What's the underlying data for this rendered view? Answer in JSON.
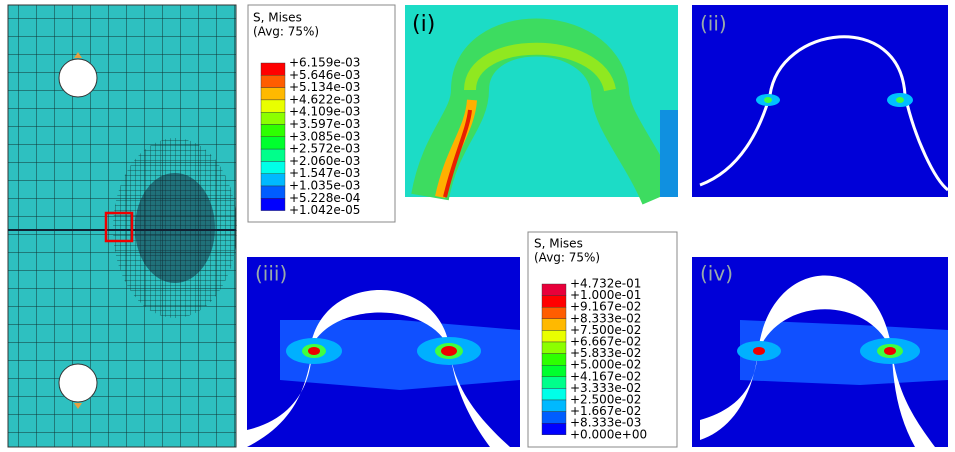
{
  "legends": [
    {
      "title": "S, Mises",
      "subtitle": "(Avg: 75%)",
      "entries": [
        "+6.159e-03",
        "+5.646e-03",
        "+5.134e-03",
        "+4.622e-03",
        "+4.109e-03",
        "+3.597e-03",
        "+3.085e-03",
        "+2.572e-03",
        "+2.060e-03",
        "+1.547e-03",
        "+1.035e-03",
        "+5.228e-04",
        "+1.042e-05"
      ]
    },
    {
      "title": "S, Mises",
      "subtitle": "(Avg: 75%)",
      "entries": [
        "+4.732e-01",
        "+1.000e-01",
        "+9.167e-02",
        "+8.333e-02",
        "+7.500e-02",
        "+6.667e-02",
        "+5.833e-02",
        "+5.000e-02",
        "+4.167e-02",
        "+3.333e-02",
        "+2.500e-02",
        "+1.667e-02",
        "+8.333e-03",
        "+0.000e+00"
      ]
    }
  ],
  "panels": [
    {
      "label": "(i)"
    },
    {
      "label": "(ii)"
    },
    {
      "label": "(iii)"
    },
    {
      "label": "(iv)"
    }
  ]
}
